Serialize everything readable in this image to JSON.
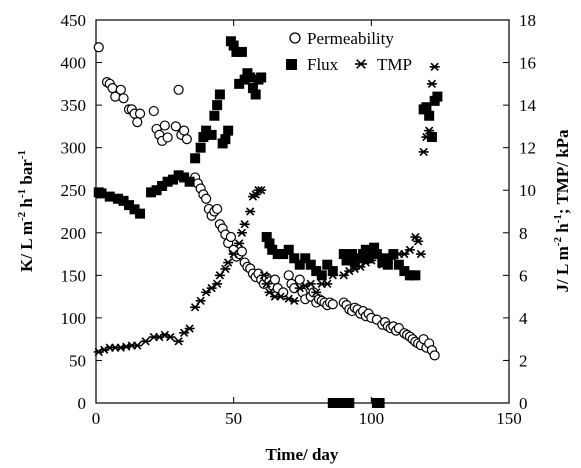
{
  "chart_data": {
    "type": "scatter",
    "title": "",
    "xlabel": "Time/ day",
    "ylabel_left": "K/ L m-2 h-1 bar-1",
    "ylabel_right": "J/ L m-2 h-1; TMP/ kPa",
    "xlim": [
      0,
      150
    ],
    "ylim_left": [
      0,
      450
    ],
    "ylim_right": [
      0,
      18
    ],
    "xticks": [
      0,
      50,
      100,
      150
    ],
    "yticks_left": [
      0,
      50,
      100,
      150,
      200,
      250,
      300,
      350,
      400,
      450
    ],
    "yticks_right": [
      0,
      2,
      4,
      6,
      8,
      10,
      12,
      14,
      16,
      18
    ],
    "grid": false,
    "legend_position": "top-right",
    "series": [
      {
        "name": "Permeability",
        "axis": "left",
        "marker": "open-circle",
        "points": [
          [
            1,
            418
          ],
          [
            4,
            377
          ],
          [
            5,
            375
          ],
          [
            6,
            370
          ],
          [
            7,
            360
          ],
          [
            9,
            368
          ],
          [
            10,
            358
          ],
          [
            12,
            345
          ],
          [
            13,
            345
          ],
          [
            14,
            340
          ],
          [
            15,
            330
          ],
          [
            16,
            340
          ],
          [
            21,
            343
          ],
          [
            22,
            322
          ],
          [
            23,
            315
          ],
          [
            24,
            308
          ],
          [
            25,
            326
          ],
          [
            26,
            312
          ],
          [
            29,
            325
          ],
          [
            30,
            368
          ],
          [
            31,
            315
          ],
          [
            32,
            320
          ],
          [
            33,
            310
          ],
          [
            35,
            260
          ],
          [
            36,
            265
          ],
          [
            37,
            258
          ],
          [
            38,
            252
          ],
          [
            39,
            245
          ],
          [
            40,
            240
          ],
          [
            41,
            228
          ],
          [
            42,
            220
          ],
          [
            43,
            225
          ],
          [
            44,
            228
          ],
          [
            45,
            210
          ],
          [
            46,
            205
          ],
          [
            47,
            198
          ],
          [
            48,
            188
          ],
          [
            49,
            195
          ],
          [
            50,
            180
          ],
          [
            51,
            172
          ],
          [
            52,
            175
          ],
          [
            53,
            178
          ],
          [
            54,
            165
          ],
          [
            55,
            160
          ],
          [
            56,
            158
          ],
          [
            57,
            152
          ],
          [
            58,
            148
          ],
          [
            59,
            152
          ],
          [
            60,
            145
          ],
          [
            61,
            140
          ],
          [
            62,
            147
          ],
          [
            63,
            143
          ],
          [
            64,
            138
          ],
          [
            65,
            145
          ],
          [
            66,
            135
          ],
          [
            68,
            130
          ],
          [
            70,
            150
          ],
          [
            71,
            140
          ],
          [
            72,
            135
          ],
          [
            74,
            145
          ],
          [
            75,
            130
          ],
          [
            76,
            122
          ],
          [
            78,
            125
          ],
          [
            79,
            130
          ],
          [
            80,
            118
          ],
          [
            81,
            122
          ],
          [
            82,
            120
          ],
          [
            83,
            118
          ],
          [
            84,
            115
          ],
          [
            85,
            118
          ],
          [
            86,
            116
          ],
          [
            90,
            118
          ],
          [
            91,
            115
          ],
          [
            92,
            110
          ],
          [
            93,
            108
          ],
          [
            94,
            112
          ],
          [
            95,
            110
          ],
          [
            96,
            105
          ],
          [
            97,
            108
          ],
          [
            98,
            102
          ],
          [
            99,
            105
          ],
          [
            100,
            100
          ],
          [
            102,
            98
          ],
          [
            104,
            92
          ],
          [
            105,
            95
          ],
          [
            106,
            90
          ],
          [
            107,
            88
          ],
          [
            108,
            90
          ],
          [
            109,
            85
          ],
          [
            110,
            88
          ],
          [
            112,
            82
          ],
          [
            113,
            80
          ],
          [
            114,
            78
          ],
          [
            115,
            75
          ],
          [
            116,
            72
          ],
          [
            117,
            70
          ],
          [
            118,
            68
          ],
          [
            119,
            75
          ],
          [
            120,
            65
          ],
          [
            121,
            70
          ],
          [
            122,
            62
          ],
          [
            123,
            56
          ]
        ]
      },
      {
        "name": "Flux",
        "axis": "right",
        "marker": "filled-square",
        "points": [
          [
            1,
            9.9
          ],
          [
            2,
            9.85
          ],
          [
            5,
            9.7
          ],
          [
            8,
            9.6
          ],
          [
            10,
            9.5
          ],
          [
            12,
            9.3
          ],
          [
            14,
            9.1
          ],
          [
            16,
            8.9
          ],
          [
            20,
            9.9
          ],
          [
            22,
            10.0
          ],
          [
            24,
            10.2
          ],
          [
            26,
            10.4
          ],
          [
            28,
            10.5
          ],
          [
            30,
            10.7
          ],
          [
            32,
            10.6
          ],
          [
            34,
            10.4
          ],
          [
            36,
            11.5
          ],
          [
            38,
            12.0
          ],
          [
            39,
            12.5
          ],
          [
            40,
            12.8
          ],
          [
            42,
            12.6
          ],
          [
            43,
            13.5
          ],
          [
            44,
            14.0
          ],
          [
            45,
            14.5
          ],
          [
            46,
            12.2
          ],
          [
            47,
            12.4
          ],
          [
            48,
            12.8
          ],
          [
            49,
            17.0
          ],
          [
            50,
            16.8
          ],
          [
            51,
            16.5
          ],
          [
            52,
            15.0
          ],
          [
            53,
            16.5
          ],
          [
            54,
            15.2
          ],
          [
            55,
            15.5
          ],
          [
            56,
            15.3
          ],
          [
            57,
            14.8
          ],
          [
            58,
            14.5
          ],
          [
            59,
            15.2
          ],
          [
            60,
            15.3
          ],
          [
            62,
            7.8
          ],
          [
            63,
            7.5
          ],
          [
            64,
            7.2
          ],
          [
            66,
            7.0
          ],
          [
            68,
            7.0
          ],
          [
            70,
            7.2
          ],
          [
            72,
            6.8
          ],
          [
            74,
            6.5
          ],
          [
            76,
            6.8
          ],
          [
            78,
            6.5
          ],
          [
            80,
            6.2
          ],
          [
            82,
            6.0
          ],
          [
            84,
            6.5
          ],
          [
            86,
            6.2
          ],
          [
            90,
            7.0
          ],
          [
            91,
            6.7
          ],
          [
            92,
            6.9
          ],
          [
            93,
            7.0
          ],
          [
            94,
            6.6
          ],
          [
            96,
            6.8
          ],
          [
            97,
            7.0
          ],
          [
            98,
            7.2
          ],
          [
            99,
            6.8
          ],
          [
            100,
            7.0
          ],
          [
            101,
            7.3
          ],
          [
            102,
            7.0
          ],
          [
            104,
            6.6
          ],
          [
            105,
            6.8
          ],
          [
            106,
            6.5
          ],
          [
            108,
            7.0
          ],
          [
            110,
            6.5
          ],
          [
            112,
            6.2
          ],
          [
            114,
            6.0
          ],
          [
            116,
            6.0
          ],
          [
            119,
            13.8
          ],
          [
            120,
            13.9
          ],
          [
            121,
            13.5
          ],
          [
            122,
            12.5
          ],
          [
            123,
            14.2
          ],
          [
            124,
            14.4
          ],
          [
            86,
            0
          ],
          [
            88,
            0
          ],
          [
            89,
            0
          ],
          [
            90,
            0
          ],
          [
            91,
            0
          ],
          [
            92,
            0
          ],
          [
            102,
            0
          ],
          [
            103,
            0
          ]
        ]
      },
      {
        "name": "TMP",
        "axis": "right",
        "marker": "asterisk",
        "points": [
          [
            1,
            2.4
          ],
          [
            3,
            2.5
          ],
          [
            5,
            2.6
          ],
          [
            7,
            2.6
          ],
          [
            9,
            2.6
          ],
          [
            11,
            2.65
          ],
          [
            13,
            2.7
          ],
          [
            15,
            2.7
          ],
          [
            18,
            2.9
          ],
          [
            21,
            3.1
          ],
          [
            23,
            3.1
          ],
          [
            25,
            3.2
          ],
          [
            27,
            3.1
          ],
          [
            30,
            2.9
          ],
          [
            32,
            3.3
          ],
          [
            34,
            3.5
          ],
          [
            36,
            4.5
          ],
          [
            38,
            4.8
          ],
          [
            40,
            5.2
          ],
          [
            42,
            5.4
          ],
          [
            44,
            5.6
          ],
          [
            45,
            6.0
          ],
          [
            47,
            6.3
          ],
          [
            48,
            6.6
          ],
          [
            50,
            7.0
          ],
          [
            52,
            7.5
          ],
          [
            53,
            8.0
          ],
          [
            54,
            8.4
          ],
          [
            56,
            9.0
          ],
          [
            57,
            9.7
          ],
          [
            58,
            9.8
          ],
          [
            59,
            10.0
          ],
          [
            60,
            10.0
          ],
          [
            61,
            6.0
          ],
          [
            62,
            5.6
          ],
          [
            63,
            5.2
          ],
          [
            65,
            5.0
          ],
          [
            67,
            5.0
          ],
          [
            70,
            4.9
          ],
          [
            72,
            4.8
          ],
          [
            74,
            5.4
          ],
          [
            76,
            5.5
          ],
          [
            78,
            5.6
          ],
          [
            80,
            5.2
          ],
          [
            82,
            5.6
          ],
          [
            84,
            5.6
          ],
          [
            86,
            6.0
          ],
          [
            90,
            6.0
          ],
          [
            92,
            6.2
          ],
          [
            94,
            6.3
          ],
          [
            96,
            6.4
          ],
          [
            98,
            6.6
          ],
          [
            100,
            6.7
          ],
          [
            102,
            7.0
          ],
          [
            104,
            6.5
          ],
          [
            106,
            6.6
          ],
          [
            108,
            6.8
          ],
          [
            110,
            7.0
          ],
          [
            112,
            7.0
          ],
          [
            114,
            7.2
          ],
          [
            116,
            7.8
          ],
          [
            117,
            7.6
          ],
          [
            118,
            7.0
          ],
          [
            119,
            11.8
          ],
          [
            120,
            12.5
          ],
          [
            121,
            12.8
          ],
          [
            122,
            15.0
          ],
          [
            123,
            15.8
          ]
        ]
      }
    ]
  },
  "labels": {
    "xlabel_text": "Time/ day",
    "ylabel_left_base": "K/ L m",
    "ylabel_left_sup1": "-2",
    "ylabel_left_mid": " h",
    "ylabel_left_sup2": "-1",
    "ylabel_left_end": " bar",
    "ylabel_left_sup3": "-1",
    "ylabel_right_base": "J/ L m",
    "ylabel_right_sup1": "-2",
    "ylabel_right_mid": " h",
    "ylabel_right_sup2": "-1",
    "ylabel_right_end": "; TMP/ kPa",
    "legend_permeability": "Permeability",
    "legend_flux": "Flux",
    "legend_tmp": "TMP"
  }
}
